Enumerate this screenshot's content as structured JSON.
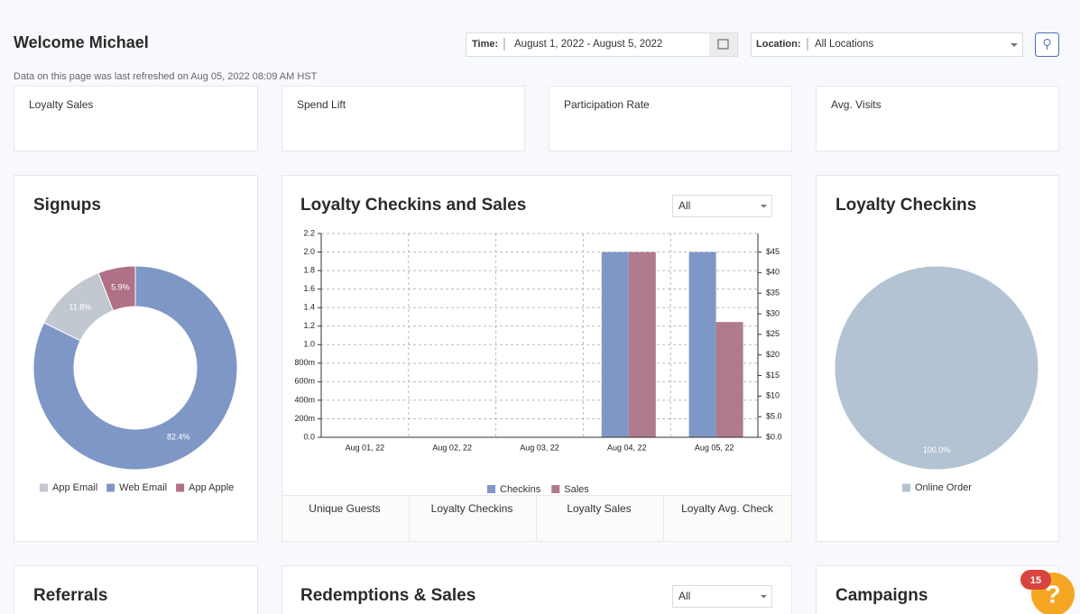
{
  "header": {
    "title": "Welcome Michael",
    "time_label": "Time:",
    "time_value": "August 1, 2022 - August 5, 2022",
    "location_label": "Location:",
    "location_value": "All Locations",
    "refresh_note": "Data on this page was last refreshed on Aug 05, 2022 08:09 AM HST"
  },
  "kpi_cards": [
    "Loyalty Sales",
    "Spend Lift",
    "Participation Rate",
    "Avg. Visits"
  ],
  "checkins_tabs": [
    "Unique Guests",
    "Loyalty Checkins",
    "Loyalty Sales",
    "Loyalty Avg. Check"
  ],
  "bottom_cards": [
    {
      "title": "Referrals"
    },
    {
      "title": "Redemptions & Sales",
      "filter": "All"
    },
    {
      "title": "Campaigns"
    }
  ],
  "help_badge": "15",
  "chart_data": [
    {
      "type": "donut",
      "title": "Signups",
      "categories": [
        "App Email",
        "Web Email",
        "App Apple"
      ],
      "values": [
        11.8,
        82.4,
        5.9
      ],
      "value_labels": [
        "11.8%",
        "82.4%",
        "5.9%"
      ],
      "colors": [
        "#c2c8cf",
        "#7f97c6",
        "#b07088"
      ]
    },
    {
      "type": "bar",
      "title": "Loyalty Checkins and Sales",
      "filter": "All",
      "categories": [
        "Aug 01, 22",
        "Aug 02, 22",
        "Aug 03, 22",
        "Aug 04, 22",
        "Aug 05, 22"
      ],
      "series": [
        {
          "name": "Checkins",
          "color": "#7f97c6",
          "values": [
            0,
            0,
            0,
            2,
            2
          ]
        },
        {
          "name": "Sales",
          "color": "#b07a8e",
          "axis": "y2",
          "values": [
            0,
            0,
            0,
            45,
            28
          ]
        }
      ],
      "ylim": [
        0,
        2.2
      ],
      "yticks": [
        {
          "value": 0,
          "label": "0.0"
        },
        {
          "value": 0.2,
          "label": "200m"
        },
        {
          "value": 0.4,
          "label": "400m"
        },
        {
          "value": 0.6,
          "label": "600m"
        },
        {
          "value": 0.8,
          "label": "800m"
        },
        {
          "value": 1,
          "label": "1.0"
        },
        1.2,
        1.4,
        1.6,
        1.8,
        {
          "value": 2,
          "label": "2.0"
        },
        2.2
      ],
      "y2lim": [
        0,
        49.5
      ],
      "y2ticks": [
        {
          "value": 0,
          "label": "$0.0"
        },
        {
          "value": 5,
          "label": "$5.0"
        },
        {
          "value": 10,
          "label": "$10"
        },
        {
          "value": 15,
          "label": "$15"
        },
        {
          "value": 20,
          "label": "$20"
        },
        {
          "value": 25,
          "label": "$25"
        },
        {
          "value": 30,
          "label": "$30"
        },
        {
          "value": 35,
          "label": "$35"
        },
        {
          "value": 40,
          "label": "$40"
        },
        {
          "value": 45,
          "label": "$45"
        }
      ],
      "grid": true
    },
    {
      "type": "pie",
      "title": "Loyalty Checkins",
      "categories": [
        "Online Order"
      ],
      "values": [
        100
      ],
      "value_labels": [
        "100.0%"
      ],
      "colors": [
        "#b4c3d3"
      ]
    }
  ]
}
